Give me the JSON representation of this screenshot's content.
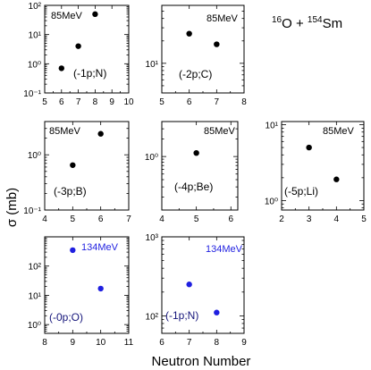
{
  "figure": {
    "ylabel": "σ (mb)",
    "xlabel": "Neutron Number",
    "reaction": {
      "z1": "16",
      "s1": "O + ",
      "z2": "154",
      "s2": "Sm"
    }
  },
  "chart_data": [
    {
      "type": "scatter",
      "label": "(-1p;N)",
      "energy": "85MeV",
      "xlim": [
        5,
        10
      ],
      "xticks": [
        5,
        6,
        7,
        8,
        9,
        10
      ],
      "ylog": true,
      "ylim": [
        0.1,
        100
      ],
      "yticks": [
        0.1,
        1,
        10,
        100
      ],
      "yticklabels": [
        "10⁻¹",
        "10⁰",
        "10¹",
        "10²"
      ],
      "color": "#000000",
      "points": [
        {
          "x": 6,
          "y": 0.7
        },
        {
          "x": 7,
          "y": 4
        },
        {
          "x": 8,
          "y": 50
        }
      ]
    },
    {
      "type": "scatter",
      "label": "(-2p;C)",
      "energy": "85MeV",
      "xlim": [
        5,
        8
      ],
      "xticks": [
        5,
        6,
        7,
        8
      ],
      "ylog": true,
      "ylim": [
        4,
        60
      ],
      "yticks": [
        10
      ],
      "yticklabels": [
        "10¹"
      ],
      "color": "#000000",
      "points": [
        {
          "x": 6,
          "y": 25
        },
        {
          "x": 7,
          "y": 18
        }
      ]
    },
    {
      "type": "scatter",
      "label": "(-3p;B)",
      "energy": "85MeV",
      "xlim": [
        4,
        7
      ],
      "xticks": [
        4,
        5,
        6,
        7
      ],
      "ylog": true,
      "ylim": [
        0.1,
        4
      ],
      "yticks": [
        0.1,
        1
      ],
      "yticklabels": [
        "10⁻¹",
        "10⁰"
      ],
      "color": "#000000",
      "points": [
        {
          "x": 5,
          "y": 0.65
        },
        {
          "x": 6,
          "y": 2.4
        }
      ]
    },
    {
      "type": "scatter",
      "label": "(-4p;Be)",
      "energy": "85MeV",
      "xlim": [
        4,
        6.2
      ],
      "xticks": [
        4,
        5,
        6
      ],
      "ylog": true,
      "ylim": [
        0.12,
        4
      ],
      "yticks": [
        1
      ],
      "yticklabels": [
        "10⁰"
      ],
      "color": "#000000",
      "points": [
        {
          "x": 5,
          "y": 1.15
        }
      ]
    },
    {
      "type": "scatter",
      "label": "(-5p;Li)",
      "energy": "85MeV",
      "xlim": [
        2,
        5
      ],
      "xticks": [
        2,
        3,
        4,
        5
      ],
      "ylog": true,
      "ylim": [
        0.75,
        11
      ],
      "yticks": [
        1,
        10
      ],
      "yticklabels": [
        "10⁰",
        "10¹"
      ],
      "color": "#000000",
      "points": [
        {
          "x": 3,
          "y": 5
        },
        {
          "x": 4,
          "y": 1.9
        }
      ]
    },
    {
      "type": "scatter",
      "label": "(-0p;O)",
      "energy": "134MeV",
      "xlim": [
        8,
        11
      ],
      "xticks": [
        8,
        9,
        10,
        11
      ],
      "ylog": true,
      "ylim": [
        0.5,
        1000
      ],
      "yticks": [
        1,
        10,
        100
      ],
      "yticklabels": [
        "10⁰",
        "10¹",
        "10²"
      ],
      "color": "#1f1fe0",
      "points": [
        {
          "x": 9,
          "y": 350
        },
        {
          "x": 10,
          "y": 17
        }
      ]
    },
    {
      "type": "scatter",
      "label": "(-1p;N)",
      "energy": "134MeV",
      "xlim": [
        6,
        9
      ],
      "xticks": [
        6,
        7,
        8,
        9
      ],
      "ylog": true,
      "ylim": [
        60,
        1000
      ],
      "yticks": [
        100,
        1000
      ],
      "yticklabels": [
        "10²",
        "10³"
      ],
      "color": "#1f1fe0",
      "points": [
        {
          "x": 7,
          "y": 250
        },
        {
          "x": 8,
          "y": 110
        }
      ]
    }
  ]
}
